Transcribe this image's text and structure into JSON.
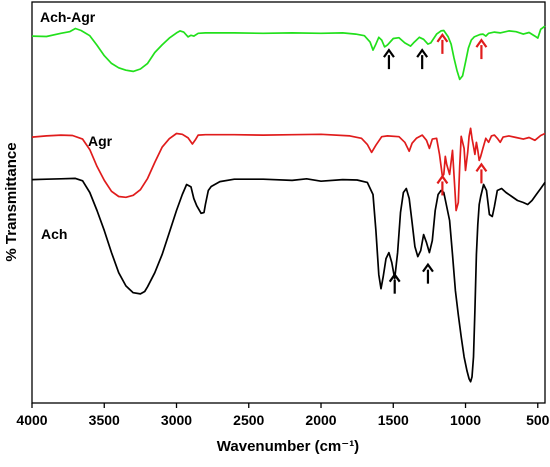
{
  "chart_data": {
    "type": "line",
    "title": "",
    "xlabel": "Wavenumber (cm⁻¹)",
    "ylabel": "% Transmittance",
    "xlim": [
      4000,
      450
    ],
    "x_reversed": true,
    "ylim": [
      0,
      100
    ],
    "y_ticks_shown": false,
    "grid": false,
    "x_ticks": [
      4000,
      3500,
      3000,
      2500,
      2000,
      1500,
      1000,
      500
    ],
    "series": [
      {
        "name": "Ach-Agr",
        "color": "#22e01c",
        "points": [
          [
            4000,
            91.5
          ],
          [
            3900,
            91.4
          ],
          [
            3800,
            92.2
          ],
          [
            3740,
            92.6
          ],
          [
            3700,
            93.4
          ],
          [
            3660,
            92.9
          ],
          [
            3600,
            91.6
          ],
          [
            3550,
            89.2
          ],
          [
            3500,
            86.6
          ],
          [
            3450,
            84.7
          ],
          [
            3400,
            83.6
          ],
          [
            3350,
            83.0
          ],
          [
            3300,
            82.7
          ],
          [
            3250,
            83.3
          ],
          [
            3200,
            84.7
          ],
          [
            3150,
            87.4
          ],
          [
            3100,
            89.3
          ],
          [
            3050,
            91.0
          ],
          [
            3000,
            92.3
          ],
          [
            2975,
            92.8
          ],
          [
            2950,
            92.5
          ],
          [
            2920,
            91.3
          ],
          [
            2900,
            91.7
          ],
          [
            2880,
            91.5
          ],
          [
            2850,
            92.2
          ],
          [
            2800,
            92.3
          ],
          [
            2600,
            92.3
          ],
          [
            2400,
            92.2
          ],
          [
            2200,
            92.3
          ],
          [
            2000,
            92.2
          ],
          [
            1850,
            92.3
          ],
          [
            1760,
            92.0
          ],
          [
            1700,
            91.6
          ],
          [
            1660,
            90.0
          ],
          [
            1640,
            88.0
          ],
          [
            1620,
            89.5
          ],
          [
            1600,
            91.2
          ],
          [
            1580,
            90.5
          ],
          [
            1560,
            88.8
          ],
          [
            1540,
            89.3
          ],
          [
            1500,
            90.9
          ],
          [
            1460,
            91.1
          ],
          [
            1420,
            89.8
          ],
          [
            1380,
            89.0
          ],
          [
            1360,
            89.8
          ],
          [
            1340,
            90.5
          ],
          [
            1320,
            91.2
          ],
          [
            1290,
            90.7
          ],
          [
            1260,
            89.5
          ],
          [
            1240,
            89.8
          ],
          [
            1200,
            92.0
          ],
          [
            1170,
            92.8
          ],
          [
            1150,
            92.9
          ],
          [
            1120,
            91.3
          ],
          [
            1100,
            89.5
          ],
          [
            1080,
            86.0
          ],
          [
            1060,
            83.0
          ],
          [
            1040,
            80.7
          ],
          [
            1020,
            81.6
          ],
          [
            1000,
            85.0
          ],
          [
            980,
            88.5
          ],
          [
            960,
            90.5
          ],
          [
            940,
            91.3
          ],
          [
            900,
            91.9
          ],
          [
            880,
            92.0
          ],
          [
            860,
            91.5
          ],
          [
            840,
            92.2
          ],
          [
            800,
            92.5
          ],
          [
            760,
            92.3
          ],
          [
            700,
            92.8
          ],
          [
            650,
            92.6
          ],
          [
            600,
            92.0
          ],
          [
            560,
            92.4
          ],
          [
            520,
            91.5
          ],
          [
            500,
            91.0
          ],
          [
            480,
            93.2
          ],
          [
            450,
            94.0
          ]
        ]
      },
      {
        "name": "Agr",
        "color": "#e01c1c",
        "points": [
          [
            4000,
            66.3
          ],
          [
            3900,
            66.6
          ],
          [
            3800,
            66.8
          ],
          [
            3720,
            66.7
          ],
          [
            3650,
            65.8
          ],
          [
            3600,
            63.2
          ],
          [
            3550,
            59.0
          ],
          [
            3500,
            55.5
          ],
          [
            3450,
            52.8
          ],
          [
            3400,
            51.5
          ],
          [
            3350,
            51.3
          ],
          [
            3300,
            51.8
          ],
          [
            3250,
            53.2
          ],
          [
            3200,
            56.0
          ],
          [
            3150,
            60.0
          ],
          [
            3100,
            63.8
          ],
          [
            3050,
            65.9
          ],
          [
            3000,
            67.2
          ],
          [
            2960,
            67.0
          ],
          [
            2920,
            66.1
          ],
          [
            2890,
            64.6
          ],
          [
            2870,
            65.6
          ],
          [
            2850,
            66.8
          ],
          [
            2800,
            66.9
          ],
          [
            2600,
            66.9
          ],
          [
            2400,
            66.8
          ],
          [
            2200,
            66.9
          ],
          [
            2000,
            67.0
          ],
          [
            1800,
            66.6
          ],
          [
            1720,
            66.0
          ],
          [
            1680,
            64.5
          ],
          [
            1650,
            62.5
          ],
          [
            1620,
            64.3
          ],
          [
            1580,
            66.4
          ],
          [
            1540,
            66.6
          ],
          [
            1460,
            66.4
          ],
          [
            1420,
            65.0
          ],
          [
            1390,
            62.8
          ],
          [
            1370,
            64.8
          ],
          [
            1340,
            66.0
          ],
          [
            1300,
            66.8
          ],
          [
            1270,
            65.5
          ],
          [
            1250,
            63.5
          ],
          [
            1230,
            65.8
          ],
          [
            1200,
            66.0
          ],
          [
            1180,
            62.0
          ],
          [
            1160,
            56.5
          ],
          [
            1150,
            57.0
          ],
          [
            1140,
            61.5
          ],
          [
            1130,
            59.5
          ],
          [
            1110,
            57.0
          ],
          [
            1090,
            63.0
          ],
          [
            1075,
            54.0
          ],
          [
            1065,
            48.0
          ],
          [
            1050,
            50.0
          ],
          [
            1040,
            59.0
          ],
          [
            1030,
            66.5
          ],
          [
            1010,
            63.5
          ],
          [
            1000,
            58.0
          ],
          [
            985,
            62.5
          ],
          [
            975,
            66.5
          ],
          [
            965,
            68.5
          ],
          [
            955,
            66.0
          ],
          [
            945,
            64.0
          ],
          [
            935,
            62.0
          ],
          [
            925,
            65.0
          ],
          [
            915,
            63.0
          ],
          [
            905,
            60.5
          ],
          [
            895,
            61.5
          ],
          [
            880,
            63.5
          ],
          [
            860,
            66.0
          ],
          [
            840,
            65.0
          ],
          [
            820,
            66.6
          ],
          [
            800,
            66.8
          ],
          [
            780,
            66.0
          ],
          [
            760,
            65.0
          ],
          [
            740,
            66.3
          ],
          [
            700,
            66.6
          ],
          [
            650,
            66.2
          ],
          [
            600,
            65.8
          ],
          [
            560,
            66.2
          ],
          [
            520,
            65.5
          ],
          [
            480,
            66.7
          ],
          [
            450,
            67.2
          ]
        ]
      },
      {
        "name": "Ach",
        "color": "#000000",
        "points": [
          [
            4000,
            55.7
          ],
          [
            3900,
            55.8
          ],
          [
            3800,
            55.9
          ],
          [
            3700,
            56.0
          ],
          [
            3650,
            55.4
          ],
          [
            3600,
            52.5
          ],
          [
            3550,
            48.0
          ],
          [
            3500,
            43.0
          ],
          [
            3450,
            37.5
          ],
          [
            3400,
            32.5
          ],
          [
            3350,
            29.2
          ],
          [
            3300,
            27.5
          ],
          [
            3250,
            27.2
          ],
          [
            3220,
            27.8
          ],
          [
            3200,
            29.0
          ],
          [
            3150,
            32.5
          ],
          [
            3100,
            37.0
          ],
          [
            3050,
            42.5
          ],
          [
            3000,
            48.0
          ],
          [
            2960,
            52.0
          ],
          [
            2930,
            54.5
          ],
          [
            2900,
            53.9
          ],
          [
            2880,
            51.0
          ],
          [
            2860,
            49.2
          ],
          [
            2830,
            47.3
          ],
          [
            2810,
            47.5
          ],
          [
            2800,
            49.5
          ],
          [
            2780,
            53.0
          ],
          [
            2760,
            54.0
          ],
          [
            2700,
            55.2
          ],
          [
            2600,
            55.8
          ],
          [
            2400,
            55.8
          ],
          [
            2200,
            55.5
          ],
          [
            2100,
            55.9
          ],
          [
            2000,
            55.3
          ],
          [
            1850,
            55.7
          ],
          [
            1750,
            55.6
          ],
          [
            1680,
            55.0
          ],
          [
            1640,
            52.0
          ],
          [
            1620,
            43.0
          ],
          [
            1600,
            32.0
          ],
          [
            1585,
            28.5
          ],
          [
            1570,
            31.5
          ],
          [
            1550,
            36.0
          ],
          [
            1530,
            37.5
          ],
          [
            1510,
            35.0
          ],
          [
            1490,
            31.0
          ],
          [
            1470,
            37.5
          ],
          [
            1450,
            47.5
          ],
          [
            1430,
            52.5
          ],
          [
            1410,
            53.5
          ],
          [
            1390,
            51.0
          ],
          [
            1370,
            45.0
          ],
          [
            1350,
            39.0
          ],
          [
            1330,
            36.5
          ],
          [
            1310,
            38.0
          ],
          [
            1290,
            42.0
          ],
          [
            1270,
            40.0
          ],
          [
            1250,
            37.5
          ],
          [
            1230,
            40.5
          ],
          [
            1210,
            48.0
          ],
          [
            1190,
            52.0
          ],
          [
            1170,
            53.0
          ],
          [
            1150,
            52.5
          ],
          [
            1130,
            49.0
          ],
          [
            1110,
            45.5
          ],
          [
            1090,
            37.0
          ],
          [
            1070,
            28.0
          ],
          [
            1050,
            22.0
          ],
          [
            1030,
            16.5
          ],
          [
            1010,
            11.5
          ],
          [
            990,
            8.0
          ],
          [
            975,
            6.0
          ],
          [
            965,
            5.3
          ],
          [
            955,
            6.5
          ],
          [
            945,
            11.5
          ],
          [
            935,
            23.0
          ],
          [
            925,
            37.0
          ],
          [
            915,
            44.5
          ],
          [
            905,
            49.5
          ],
          [
            895,
            51.5
          ],
          [
            875,
            54.5
          ],
          [
            855,
            53.0
          ],
          [
            835,
            47.0
          ],
          [
            815,
            46.5
          ],
          [
            800,
            49.0
          ],
          [
            780,
            53.0
          ],
          [
            750,
            53.5
          ],
          [
            720,
            52.5
          ],
          [
            680,
            51.5
          ],
          [
            640,
            50.5
          ],
          [
            600,
            50.0
          ],
          [
            570,
            49.5
          ],
          [
            540,
            50.5
          ],
          [
            510,
            52.0
          ],
          [
            480,
            53.5
          ],
          [
            450,
            55.0
          ]
        ]
      }
    ],
    "arrows": [
      {
        "x": 1530,
        "y_tip": 88.0,
        "color": "#000000"
      },
      {
        "x": 1300,
        "y_tip": 88.0,
        "color": "#000000"
      },
      {
        "x": 1160,
        "y_tip": 91.8,
        "color": "#e01c1c"
      },
      {
        "x": 890,
        "y_tip": 90.5,
        "color": "#e01c1c"
      },
      {
        "x": 1160,
        "y_tip": 56.5,
        "color": "#e01c1c"
      },
      {
        "x": 890,
        "y_tip": 59.5,
        "color": "#e01c1c"
      },
      {
        "x": 1490,
        "y_tip": 32.0,
        "color": "#000000"
      },
      {
        "x": 1260,
        "y_tip": 34.5,
        "color": "#000000"
      }
    ]
  }
}
